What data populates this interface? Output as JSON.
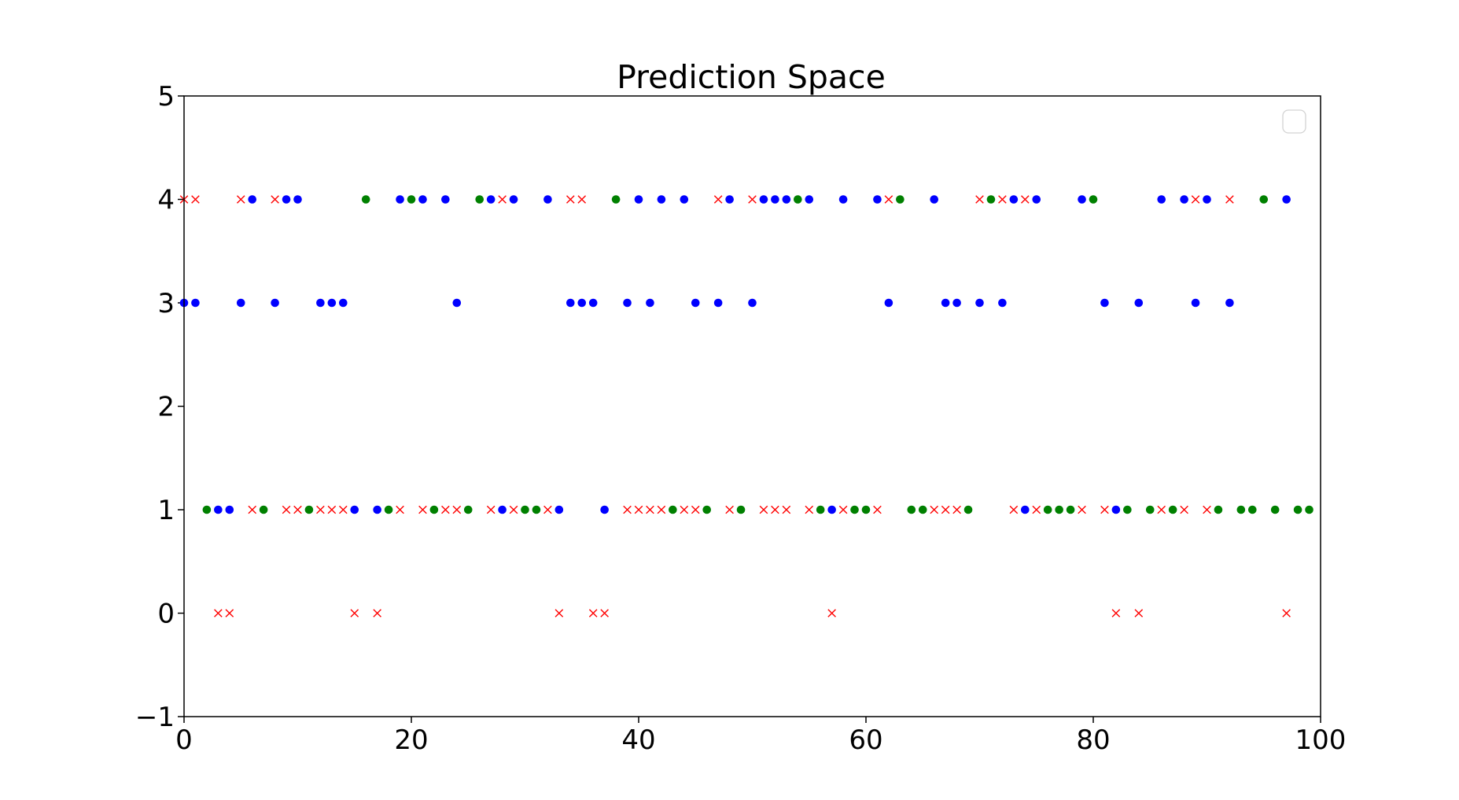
{
  "chart_data": {
    "type": "scatter",
    "title": "Prediction Space",
    "xlabel": "",
    "ylabel": "",
    "xlim": [
      0,
      100
    ],
    "ylim": [
      -1,
      5
    ],
    "x_ticks": [
      "0",
      "20",
      "40",
      "60",
      "80",
      "100"
    ],
    "y_ticks": [
      "−1",
      "0",
      "1",
      "2",
      "3",
      "4",
      "5"
    ],
    "grid": false,
    "legend": {
      "placement": "top-right",
      "entries": []
    },
    "colors": {
      "blue_dots": "#0000ff",
      "green_dots": "#008000",
      "red_crosses": "#ff0000",
      "axes": "#000000"
    },
    "series": [
      {
        "marker": "dot",
        "color": "#0000ff",
        "points": [
          [
            0,
            3
          ],
          [
            1,
            3
          ],
          [
            3,
            1
          ],
          [
            4,
            1
          ],
          [
            5,
            3
          ],
          [
            6,
            4
          ],
          [
            8,
            3
          ],
          [
            9,
            4
          ],
          [
            10,
            4
          ],
          [
            12,
            3
          ],
          [
            13,
            3
          ],
          [
            14,
            3
          ],
          [
            15,
            1
          ],
          [
            17,
            1
          ],
          [
            19,
            4
          ],
          [
            21,
            4
          ],
          [
            23,
            4
          ],
          [
            24,
            3
          ],
          [
            27,
            4
          ],
          [
            28,
            1
          ],
          [
            29,
            4
          ],
          [
            32,
            4
          ],
          [
            33,
            1
          ],
          [
            34,
            3
          ],
          [
            35,
            3
          ],
          [
            36,
            3
          ],
          [
            37,
            1
          ],
          [
            39,
            3
          ],
          [
            40,
            4
          ],
          [
            41,
            3
          ],
          [
            42,
            4
          ],
          [
            44,
            4
          ],
          [
            45,
            3
          ],
          [
            47,
            3
          ],
          [
            48,
            4
          ],
          [
            50,
            3
          ],
          [
            51,
            4
          ],
          [
            52,
            4
          ],
          [
            53,
            4
          ],
          [
            55,
            4
          ],
          [
            57,
            1
          ],
          [
            58,
            4
          ],
          [
            61,
            4
          ],
          [
            62,
            3
          ],
          [
            66,
            4
          ],
          [
            67,
            3
          ],
          [
            68,
            3
          ],
          [
            70,
            3
          ],
          [
            72,
            3
          ],
          [
            73,
            4
          ],
          [
            74,
            1
          ],
          [
            75,
            4
          ],
          [
            79,
            4
          ],
          [
            81,
            3
          ],
          [
            82,
            1
          ],
          [
            84,
            3
          ],
          [
            86,
            4
          ],
          [
            88,
            4
          ],
          [
            89,
            3
          ],
          [
            90,
            4
          ],
          [
            92,
            3
          ],
          [
            97,
            4
          ]
        ]
      },
      {
        "marker": "dot",
        "color": "#008000",
        "points": [
          [
            2,
            1
          ],
          [
            7,
            1
          ],
          [
            11,
            1
          ],
          [
            16,
            4
          ],
          [
            18,
            1
          ],
          [
            20,
            4
          ],
          [
            22,
            1
          ],
          [
            25,
            1
          ],
          [
            26,
            4
          ],
          [
            30,
            1
          ],
          [
            31,
            1
          ],
          [
            38,
            4
          ],
          [
            43,
            1
          ],
          [
            46,
            1
          ],
          [
            49,
            1
          ],
          [
            54,
            4
          ],
          [
            56,
            1
          ],
          [
            59,
            1
          ],
          [
            60,
            1
          ],
          [
            63,
            4
          ],
          [
            64,
            1
          ],
          [
            65,
            1
          ],
          [
            69,
            1
          ],
          [
            71,
            4
          ],
          [
            76,
            1
          ],
          [
            77,
            1
          ],
          [
            78,
            1
          ],
          [
            80,
            4
          ],
          [
            83,
            1
          ],
          [
            85,
            1
          ],
          [
            87,
            1
          ],
          [
            91,
            1
          ],
          [
            93,
            1
          ],
          [
            94,
            1
          ],
          [
            95,
            4
          ],
          [
            96,
            1
          ],
          [
            98,
            1
          ],
          [
            99,
            1
          ]
        ]
      },
      {
        "marker": "cross",
        "color": "#ff0000",
        "points": [
          [
            0,
            4
          ],
          [
            1,
            4
          ],
          [
            3,
            0
          ],
          [
            4,
            0
          ],
          [
            5,
            4
          ],
          [
            6,
            1
          ],
          [
            8,
            4
          ],
          [
            9,
            1
          ],
          [
            10,
            1
          ],
          [
            12,
            1
          ],
          [
            13,
            1
          ],
          [
            14,
            1
          ],
          [
            15,
            0
          ],
          [
            17,
            0
          ],
          [
            19,
            1
          ],
          [
            21,
            1
          ],
          [
            23,
            1
          ],
          [
            24,
            1
          ],
          [
            27,
            1
          ],
          [
            28,
            4
          ],
          [
            29,
            1
          ],
          [
            32,
            1
          ],
          [
            33,
            0
          ],
          [
            34,
            4
          ],
          [
            35,
            4
          ],
          [
            36,
            0
          ],
          [
            37,
            0
          ],
          [
            39,
            1
          ],
          [
            40,
            1
          ],
          [
            41,
            1
          ],
          [
            42,
            1
          ],
          [
            44,
            1
          ],
          [
            45,
            1
          ],
          [
            47,
            4
          ],
          [
            48,
            1
          ],
          [
            50,
            4
          ],
          [
            51,
            1
          ],
          [
            52,
            1
          ],
          [
            53,
            1
          ],
          [
            55,
            1
          ],
          [
            57,
            0
          ],
          [
            58,
            1
          ],
          [
            61,
            1
          ],
          [
            62,
            4
          ],
          [
            66,
            1
          ],
          [
            67,
            1
          ],
          [
            68,
            1
          ],
          [
            70,
            4
          ],
          [
            72,
            4
          ],
          [
            73,
            1
          ],
          [
            74,
            4
          ],
          [
            75,
            1
          ],
          [
            79,
            1
          ],
          [
            81,
            1
          ],
          [
            82,
            0
          ],
          [
            84,
            0
          ],
          [
            86,
            1
          ],
          [
            88,
            1
          ],
          [
            89,
            4
          ],
          [
            90,
            1
          ],
          [
            92,
            4
          ],
          [
            97,
            0
          ]
        ]
      }
    ]
  }
}
